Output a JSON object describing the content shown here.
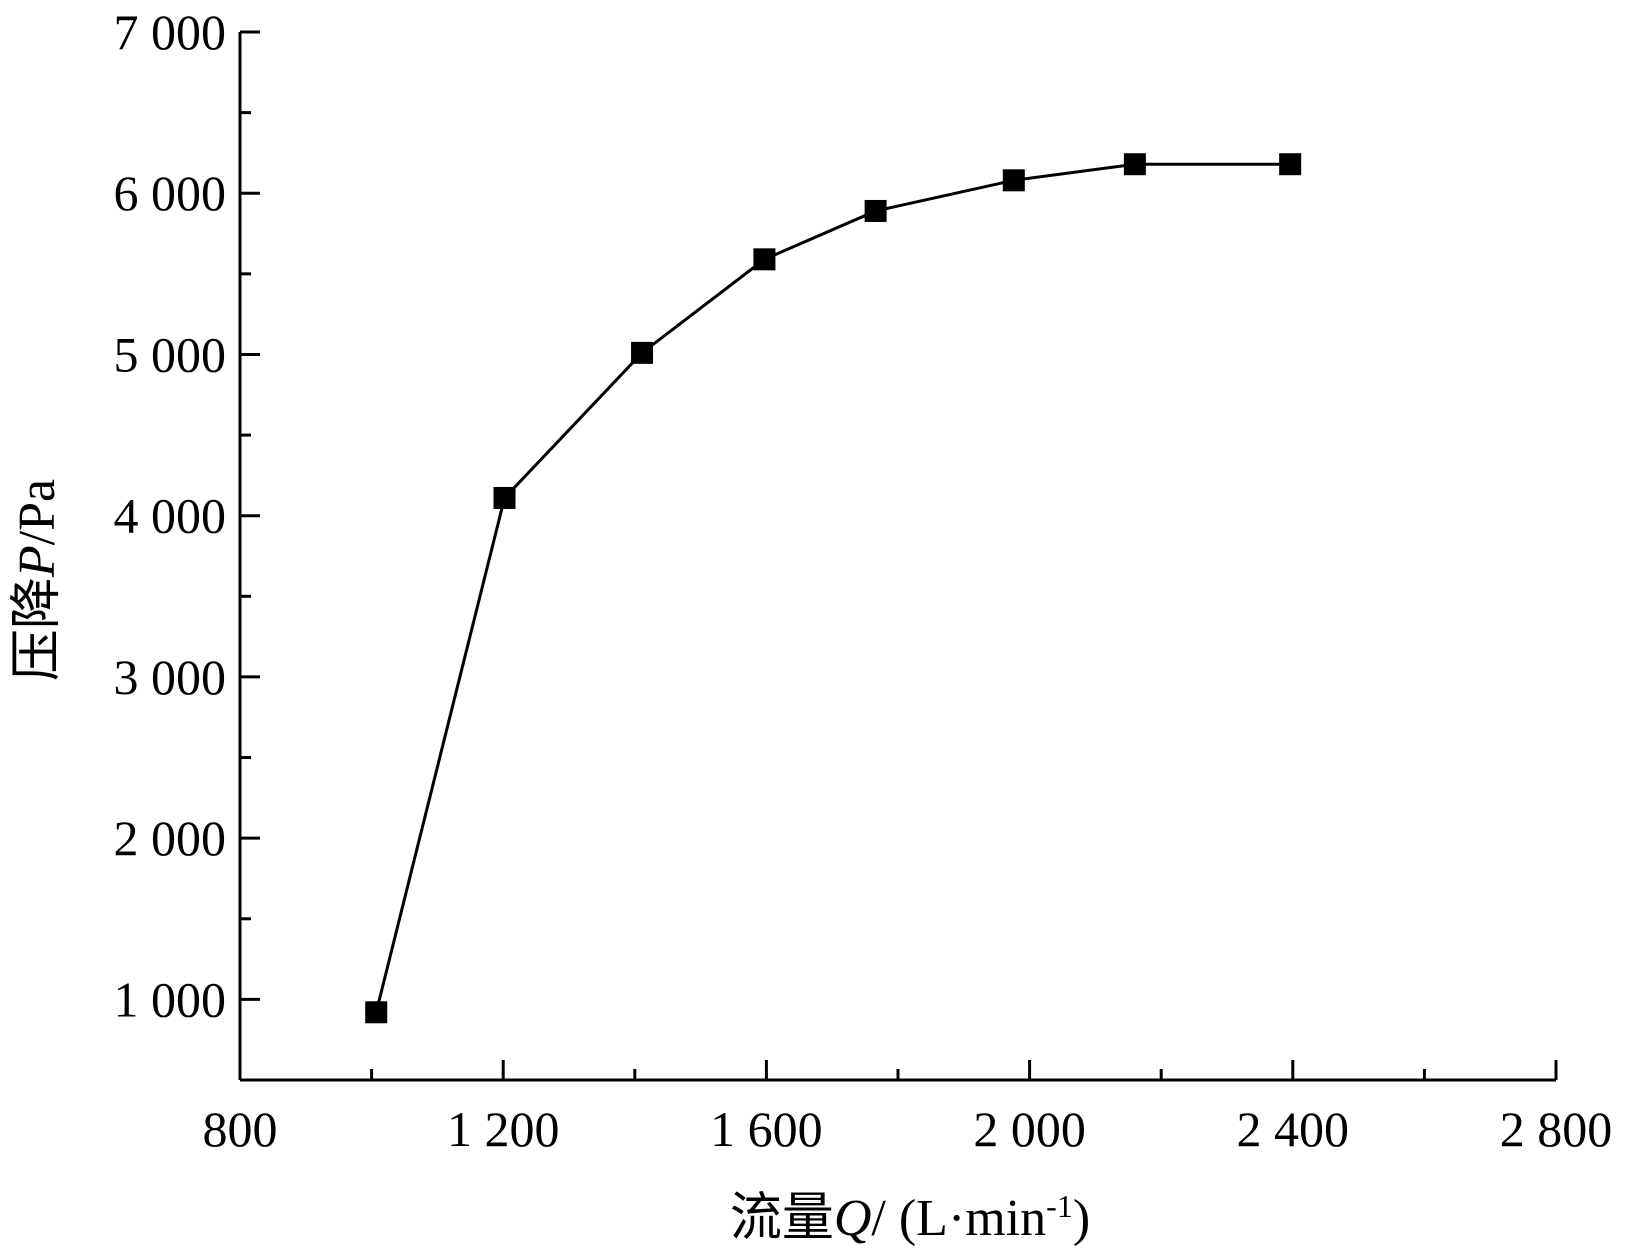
{
  "chart_data": {
    "type": "line",
    "title": "",
    "xlabel": {
      "prefix": "流量",
      "symbol": "Q",
      "unit_open": "/ (L·min",
      "unit_sup": "-1",
      "unit_close": ")"
    },
    "ylabel": {
      "prefix": "压降",
      "symbol": "P",
      "unit": "/Pa"
    },
    "xlim": [
      800,
      2800
    ],
    "ylim": [
      500,
      7000
    ],
    "x_ticks": [
      800,
      1200,
      1600,
      2000,
      2400,
      2800
    ],
    "x_tick_labels": [
      "800",
      "1 200",
      "1 600",
      "2 000",
      "2 400",
      "2 800"
    ],
    "x_minor_ticks": [
      1000,
      1400,
      1800,
      2200,
      2600
    ],
    "y_ticks": [
      1000,
      2000,
      3000,
      4000,
      5000,
      6000,
      7000
    ],
    "y_tick_labels": [
      "1 000",
      "2 000",
      "3 000",
      "4 000",
      "5 000",
      "6 000",
      "7 000"
    ],
    "y_minor_ticks": [
      1500,
      2500,
      3500,
      4500,
      5500,
      6500
    ],
    "grid": false,
    "legend": "none",
    "marker": "square",
    "color": "#000000",
    "series": [
      {
        "x": [
          1007,
          1202,
          1411,
          1597,
          1766,
          1976,
          2160,
          2396
        ],
        "y": [
          920,
          4110,
          5010,
          5590,
          5890,
          6080,
          6180,
          6180
        ]
      }
    ]
  }
}
